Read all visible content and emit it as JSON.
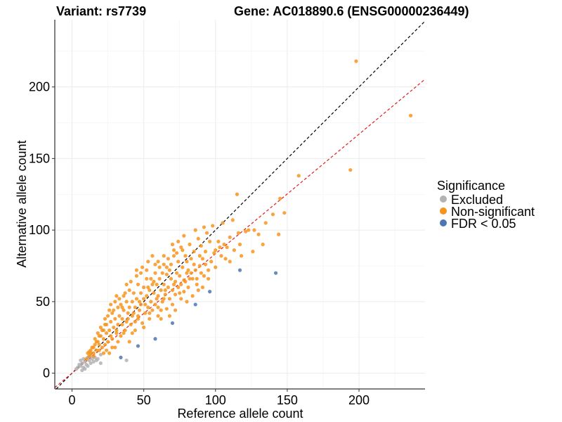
{
  "chart_data": {
    "type": "scatter",
    "title_variant": "Variant: rs7739",
    "title_gene": "Gene: AC018890.6 (ENSG00000236449)",
    "xlabel": "Reference allele count",
    "ylabel": "Alternative allele count",
    "xlim": [
      -12,
      246
    ],
    "ylim": [
      -11,
      247
    ],
    "x_ticks": [
      0,
      50,
      100,
      150,
      200
    ],
    "y_ticks": [
      0,
      50,
      100,
      150,
      200
    ],
    "x_tick_labels": [
      "0",
      "50",
      "100",
      "150",
      "200"
    ],
    "y_tick_labels": [
      "0",
      "50",
      "100",
      "150",
      "200"
    ],
    "grid": true,
    "reference_lines": [
      {
        "name": "identity",
        "slope": 1.0,
        "intercept": 0,
        "color": "#000000",
        "dash": "dashed"
      },
      {
        "name": "fit",
        "slope": 0.835,
        "intercept": 0,
        "color": "#e41a1c",
        "dash": "dashed"
      }
    ],
    "legend": {
      "title": "Significance",
      "position": "right",
      "entries": [
        {
          "label": "Excluded",
          "color": "#b3b3b3"
        },
        {
          "label": "Non-significant",
          "color": "#f7941d"
        },
        {
          "label": "FDR < 0.05",
          "color": "#4a77b4"
        }
      ]
    },
    "series": [
      {
        "name": "Excluded",
        "color": "#b3b3b3",
        "points": [
          [
            3,
            3
          ],
          [
            4,
            4
          ],
          [
            5,
            6
          ],
          [
            6,
            5
          ],
          [
            6,
            9
          ],
          [
            7,
            7
          ],
          [
            8,
            4
          ],
          [
            8,
            10
          ],
          [
            9,
            8
          ],
          [
            10,
            6
          ],
          [
            11,
            11
          ],
          [
            12,
            9
          ],
          [
            13,
            7
          ],
          [
            13,
            12
          ],
          [
            14,
            10
          ],
          [
            15,
            8
          ],
          [
            16,
            11
          ],
          [
            17,
            9
          ],
          [
            18,
            10
          ],
          [
            20,
            7
          ],
          [
            20,
            13
          ],
          [
            38,
            9
          ],
          [
            9,
            3
          ],
          [
            11,
            5
          ],
          [
            7,
            2
          ]
        ]
      },
      {
        "name": "Non-significant",
        "color": "#f7941d",
        "points": [
          [
            198,
            218
          ],
          [
            236,
            180
          ],
          [
            194,
            142
          ],
          [
            158,
            138
          ],
          [
            148,
            112
          ],
          [
            145,
            122
          ],
          [
            144,
            97
          ],
          [
            140,
            111
          ],
          [
            135,
            105
          ],
          [
            133,
            90
          ],
          [
            130,
            97
          ],
          [
            127,
            100
          ],
          [
            126,
            85
          ],
          [
            121,
            99
          ],
          [
            116,
            98
          ],
          [
            115,
            125
          ],
          [
            112,
            107
          ],
          [
            110,
            95
          ],
          [
            108,
            88
          ],
          [
            106,
            90
          ],
          [
            105,
            105
          ],
          [
            104,
            82
          ],
          [
            102,
            92
          ],
          [
            100,
            86
          ],
          [
            98,
            103
          ],
          [
            97,
            78
          ],
          [
            96,
            92
          ],
          [
            95,
            72
          ],
          [
            94,
            98
          ],
          [
            93,
            85
          ],
          [
            92,
            68
          ],
          [
            91,
            80
          ],
          [
            90,
            89
          ],
          [
            89,
            75
          ],
          [
            88,
            94
          ],
          [
            87,
            62
          ],
          [
            86,
            72
          ],
          [
            85,
            85
          ],
          [
            84,
            66
          ],
          [
            83,
            80
          ],
          [
            82,
            90
          ],
          [
            81,
            60
          ],
          [
            80,
            70
          ],
          [
            80,
            78
          ],
          [
            79,
            82
          ],
          [
            78,
            57
          ],
          [
            78,
            65
          ],
          [
            77,
            74
          ],
          [
            76,
            88
          ],
          [
            76,
            52
          ],
          [
            75,
            68
          ],
          [
            74,
            60
          ],
          [
            74,
            78
          ],
          [
            73,
            70
          ],
          [
            72,
            55
          ],
          [
            72,
            64
          ],
          [
            71,
            82
          ],
          [
            70,
            58
          ],
          [
            70,
            48
          ],
          [
            69,
            66
          ],
          [
            68,
            72
          ],
          [
            68,
            52
          ],
          [
            67,
            60
          ],
          [
            66,
            45
          ],
          [
            66,
            69
          ],
          [
            65,
            55
          ],
          [
            64,
            62
          ],
          [
            64,
            76
          ],
          [
            63,
            50
          ],
          [
            62,
            58
          ],
          [
            62,
            44
          ],
          [
            61,
            66
          ],
          [
            60,
            54
          ],
          [
            60,
            40
          ],
          [
            59,
            62
          ],
          [
            58,
            48
          ],
          [
            58,
            70
          ],
          [
            57,
            56
          ],
          [
            56,
            44
          ],
          [
            56,
            62
          ],
          [
            55,
            50
          ],
          [
            54,
            38
          ],
          [
            54,
            58
          ],
          [
            53,
            46
          ],
          [
            52,
            66
          ],
          [
            52,
            54
          ],
          [
            51,
            42
          ],
          [
            50,
            52
          ],
          [
            50,
            60
          ],
          [
            49,
            35
          ],
          [
            48,
            48
          ],
          [
            48,
            56
          ],
          [
            47,
            44
          ],
          [
            46,
            62
          ],
          [
            46,
            38
          ],
          [
            45,
            52
          ],
          [
            44,
            46
          ],
          [
            44,
            30
          ],
          [
            43,
            56
          ],
          [
            42,
            40
          ],
          [
            42,
            50
          ],
          [
            41,
            34
          ],
          [
            40,
            46
          ],
          [
            40,
            58
          ],
          [
            39,
            42
          ],
          [
            38,
            36
          ],
          [
            38,
            50
          ],
          [
            37,
            30
          ],
          [
            36,
            44
          ],
          [
            36,
            54
          ],
          [
            35,
            38
          ],
          [
            34,
            26
          ],
          [
            34,
            48
          ],
          [
            33,
            40
          ],
          [
            32,
            34
          ],
          [
            32,
            46
          ],
          [
            31,
            28
          ],
          [
            30,
            38
          ],
          [
            30,
            50
          ],
          [
            29,
            32
          ],
          [
            28,
            24
          ],
          [
            28,
            42
          ],
          [
            27,
            36
          ],
          [
            26,
            30
          ],
          [
            26,
            44
          ],
          [
            25,
            22
          ],
          [
            24,
            34
          ],
          [
            24,
            28
          ],
          [
            23,
            38
          ],
          [
            22,
            24
          ],
          [
            22,
            30
          ],
          [
            21,
            18
          ],
          [
            20,
            26
          ],
          [
            20,
            32
          ],
          [
            19,
            20
          ],
          [
            18,
            22
          ],
          [
            18,
            28
          ],
          [
            17,
            16
          ],
          [
            16,
            20
          ],
          [
            16,
            24
          ],
          [
            15,
            14
          ],
          [
            14,
            18
          ],
          [
            13,
            16
          ],
          [
            12,
            12
          ],
          [
            12,
            15
          ],
          [
            11,
            14
          ],
          [
            10,
            10
          ],
          [
            48,
            70
          ],
          [
            52,
            72
          ],
          [
            56,
            82
          ],
          [
            60,
            78
          ],
          [
            64,
            82
          ],
          [
            70,
            90
          ],
          [
            74,
            92
          ],
          [
            58,
            76
          ],
          [
            45,
            68
          ],
          [
            38,
            62
          ],
          [
            55,
            66
          ],
          [
            66,
            74
          ],
          [
            78,
            96
          ],
          [
            86,
            100
          ],
          [
            92,
            102
          ],
          [
            46,
            40
          ],
          [
            62,
            38
          ],
          [
            50,
            32
          ],
          [
            68,
            40
          ],
          [
            72,
            44
          ],
          [
            80,
            50
          ],
          [
            84,
            54
          ],
          [
            88,
            58
          ],
          [
            42,
            28
          ],
          [
            40,
            22
          ],
          [
            30,
            18
          ],
          [
            26,
            14
          ],
          [
            22,
            14
          ],
          [
            60,
            46
          ],
          [
            64,
            52
          ],
          [
            76,
            62
          ],
          [
            82,
            66
          ],
          [
            90,
            70
          ],
          [
            100,
            74
          ],
          [
            110,
            78
          ],
          [
            118,
            82
          ],
          [
            54,
            42
          ],
          [
            44,
            36
          ],
          [
            36,
            28
          ],
          [
            32,
            22
          ],
          [
            28,
            18
          ],
          [
            24,
            16
          ],
          [
            57,
            64
          ],
          [
            63,
            70
          ],
          [
            69,
            76
          ],
          [
            73,
            84
          ],
          [
            77,
            86
          ],
          [
            81,
            72
          ],
          [
            85,
            76
          ],
          [
            89,
            82
          ],
          [
            93,
            76
          ],
          [
            99,
            84
          ],
          [
            103,
            88
          ],
          [
            107,
            80
          ],
          [
            113,
            86
          ],
          [
            117,
            90
          ],
          [
            123,
            100
          ],
          [
            51,
            48
          ],
          [
            47,
            50
          ],
          [
            43,
            42
          ],
          [
            39,
            38
          ],
          [
            35,
            34
          ],
          [
            31,
            30
          ],
          [
            27,
            26
          ],
          [
            23,
            20
          ],
          [
            19,
            16
          ],
          [
            15,
            12
          ],
          [
            53,
            60
          ],
          [
            59,
            52
          ],
          [
            65,
            58
          ],
          [
            71,
            62
          ],
          [
            75,
            56
          ],
          [
            79,
            64
          ],
          [
            83,
            70
          ],
          [
            87,
            66
          ],
          [
            91,
            60
          ],
          [
            95,
            66
          ],
          [
            35,
            46
          ],
          [
            33,
            52
          ],
          [
            37,
            56
          ],
          [
            41,
            64
          ],
          [
            45,
            72
          ],
          [
            49,
            74
          ],
          [
            53,
            78
          ],
          [
            61,
            74
          ],
          [
            67,
            80
          ],
          [
            71,
            86
          ],
          [
            29,
            44
          ],
          [
            27,
            48
          ],
          [
            31,
            54
          ],
          [
            25,
            40
          ],
          [
            23,
            34
          ],
          [
            21,
            30
          ],
          [
            19,
            26
          ],
          [
            17,
            22
          ],
          [
            15,
            18
          ],
          [
            13,
            14
          ]
        ]
      },
      {
        "name": "FDR < 0.05",
        "color": "#4a77b4",
        "points": [
          [
            142,
            70
          ],
          [
            117,
            72
          ],
          [
            96,
            57
          ],
          [
            86,
            48
          ],
          [
            70,
            35
          ],
          [
            58,
            24
          ],
          [
            46,
            19
          ],
          [
            34,
            11
          ]
        ]
      }
    ]
  }
}
